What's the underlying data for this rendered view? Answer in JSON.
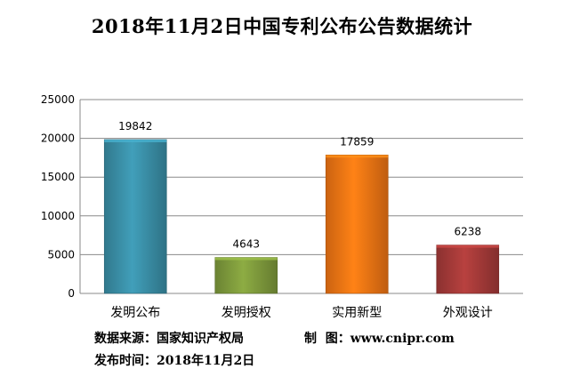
{
  "chart_data": {
    "type": "bar",
    "title": "2018年11月2日中国专利公布公告数据统计",
    "categories": [
      "发明公布",
      "发明授权",
      "实用新型",
      "外观设计"
    ],
    "values": [
      19842,
      4643,
      17859,
      6238
    ],
    "data_labels": [
      "19842",
      "4643",
      "17859",
      "6238"
    ],
    "colors": [
      "#3a8ea6",
      "#7e9a3c",
      "#ef7414",
      "#a43a38"
    ],
    "ylim": [
      0,
      25000
    ],
    "yticks": [
      "0",
      "5000",
      "10000",
      "15000",
      "20000",
      "25000"
    ],
    "ytick_values": [
      0,
      5000,
      10000,
      15000,
      20000,
      25000
    ],
    "grid": true,
    "legend": "none"
  },
  "footer": {
    "source_label": "数据来源：",
    "source_value": "国家知识产权局",
    "maker_label": "制  图：",
    "maker_value": "www.cnipr.com",
    "date_label": "发布时间：",
    "date_value": "2018年11月2日"
  }
}
